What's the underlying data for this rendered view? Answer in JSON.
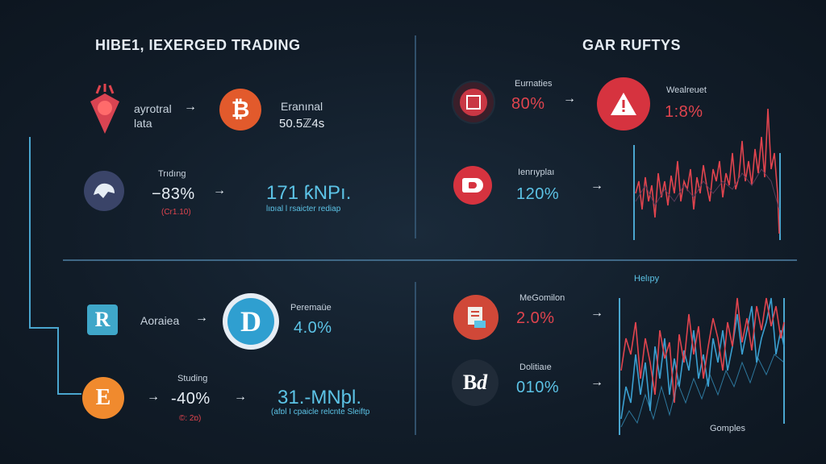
{
  "colors": {
    "accent_blue": "#5cc3e6",
    "accent_red": "#e0444e",
    "orange": "#f08a2e",
    "background": "#111c28"
  },
  "left_panel": {
    "title": "HIBE1, IEXERGED TRADING",
    "row1": {
      "icon": "gem-pin-icon",
      "label": "ayrotral\nlata",
      "coin_icon": "bitcoin-icon",
      "right_label": "Eranınal",
      "right_value": "50.5ℤ4s"
    },
    "row2": {
      "icon": "helmet-icon",
      "label": "Trıdıng",
      "value": "−83%",
      "note": "(Cr1.10)",
      "big_value": "171 ƙNPı.",
      "big_sub": "lıɒıal l rsaicter rediap"
    },
    "row3": {
      "icon": "r-logo-icon",
      "label": "Aoraiea",
      "coin_icon": "d-coin-icon",
      "right_label": "Peremaüe",
      "right_value": "4.0%"
    },
    "row4": {
      "icon": "e-coin-icon",
      "label": "Studing",
      "value": "-40%",
      "note": "©: 2ɒ)",
      "big_value": "31.-MNþl.",
      "big_sub": "(afɒl I cpaicle relcnte Sleiftp"
    }
  },
  "right_panel": {
    "title": "GAR RUFTYS",
    "row1": {
      "icon": "chip-icon",
      "label": "Eurnaties",
      "value": "80%",
      "alert_icon": "warning-icon",
      "right_label": "Wealreuet",
      "right_value": "1:8%"
    },
    "row2": {
      "icon": "d-red-icon",
      "label": "Ienrıyplaı",
      "value": "120%"
    },
    "row3": {
      "icon": "document-icon",
      "label": "MeGomilon",
      "value": "2.0%",
      "chart_label": "Helıpy"
    },
    "row4": {
      "icon": "bd-icon",
      "label": "Dolitiaıe",
      "value": "010%",
      "chart_footer": "Gomples"
    }
  }
}
